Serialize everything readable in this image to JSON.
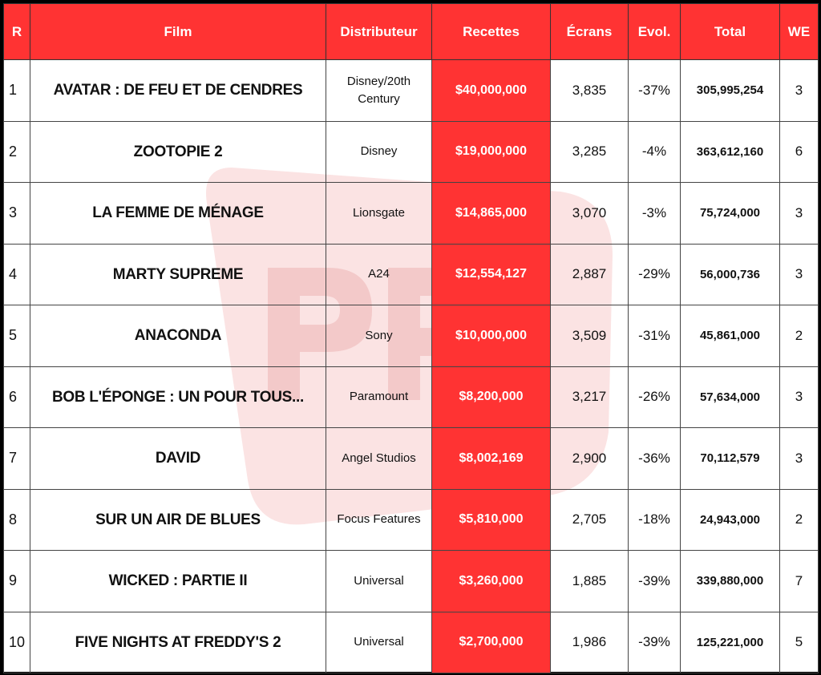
{
  "watermark": {
    "text": "PR",
    "color": "#f8d6d6"
  },
  "colors": {
    "accent": "#ff3333",
    "border": "#000000"
  },
  "headers": {
    "rank": "R",
    "film": "Film",
    "distributor": "Distributeur",
    "gross": "Recettes",
    "screens": "Écrans",
    "change": "Evol.",
    "total": "Total",
    "weekends": "WE"
  },
  "rows": [
    {
      "rank": "1",
      "film": "AVATAR : DE FEU ET DE CENDRES",
      "distributor": "Disney/20th Century",
      "gross": "$40,000,000",
      "screens": "3,835",
      "change": "-37%",
      "total": "305,995,254",
      "weekends": "3"
    },
    {
      "rank": "2",
      "film": "ZOOTOPIE 2",
      "distributor": "Disney",
      "gross": "$19,000,000",
      "screens": "3,285",
      "change": "-4%",
      "total": "363,612,160",
      "weekends": "6"
    },
    {
      "rank": "3",
      "film": "LA FEMME DE MÉNAGE",
      "distributor": "Lionsgate",
      "gross": "$14,865,000",
      "screens": "3,070",
      "change": "-3%",
      "total": "75,724,000",
      "weekends": "3"
    },
    {
      "rank": "4",
      "film": "MARTY SUPREME",
      "distributor": "A24",
      "gross": "$12,554,127",
      "screens": "2,887",
      "change": "-29%",
      "total": "56,000,736",
      "weekends": "3"
    },
    {
      "rank": "5",
      "film": "ANACONDA",
      "distributor": "Sony",
      "gross": "$10,000,000",
      "screens": "3,509",
      "change": "-31%",
      "total": "45,861,000",
      "weekends": "2"
    },
    {
      "rank": "6",
      "film": "BOB L'ÉPONGE : UN POUR TOUS...",
      "distributor": "Paramount",
      "gross": "$8,200,000",
      "screens": "3,217",
      "change": "-26%",
      "total": "57,634,000",
      "weekends": "3"
    },
    {
      "rank": "7",
      "film": "DAVID",
      "distributor": "Angel Studios",
      "gross": "$8,002,169",
      "screens": "2,900",
      "change": "-36%",
      "total": "70,112,579",
      "weekends": "3"
    },
    {
      "rank": "8",
      "film": "SUR UN AIR DE BLUES",
      "distributor": "Focus Features",
      "gross": "$5,810,000",
      "screens": "2,705",
      "change": "-18%",
      "total": "24,943,000",
      "weekends": "2"
    },
    {
      "rank": "9",
      "film": "WICKED : PARTIE II",
      "distributor": "Universal",
      "gross": "$3,260,000",
      "screens": "1,885",
      "change": "-39%",
      "total": "339,880,000",
      "weekends": "7"
    },
    {
      "rank": "10",
      "film": "FIVE NIGHTS AT FREDDY'S 2",
      "distributor": "Universal",
      "gross": "$2,700,000",
      "screens": "1,986",
      "change": "-39%",
      "total": "125,221,000",
      "weekends": "5"
    }
  ]
}
